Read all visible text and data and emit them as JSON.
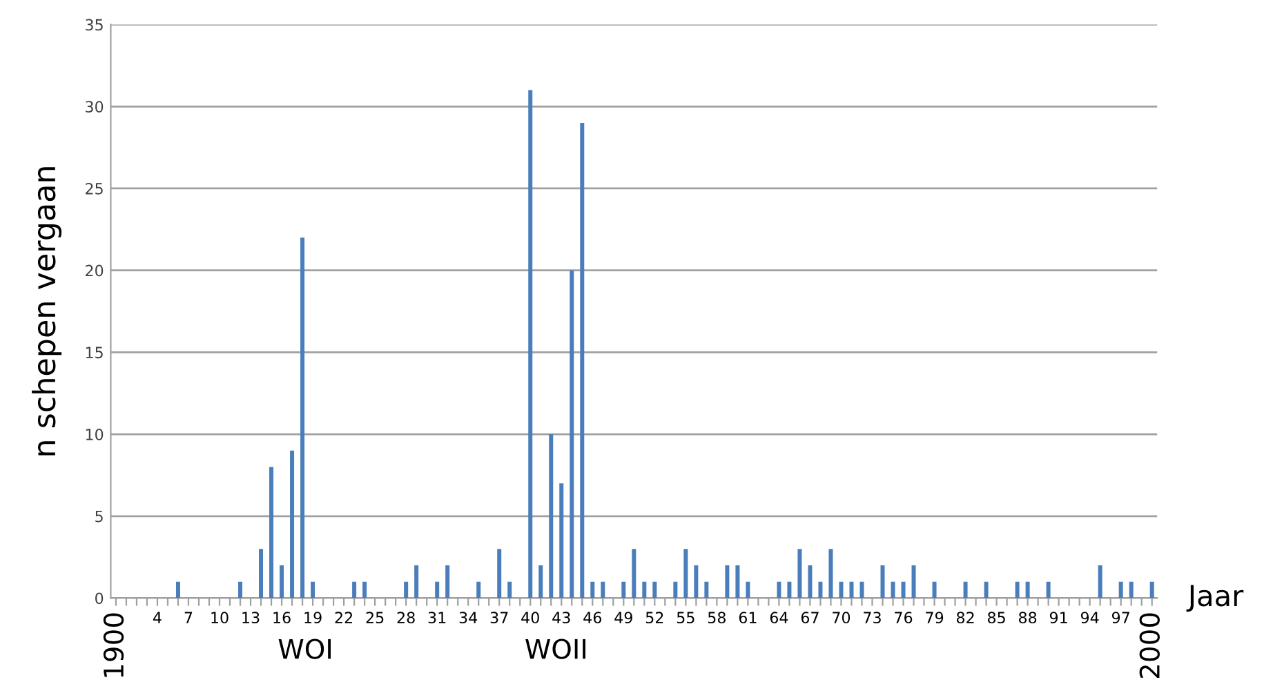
{
  "chart_data": {
    "type": "bar",
    "xlabel": "Jaar",
    "ylabel": "n schepen vergaan",
    "color": "#4a7ebb",
    "categories": [
      "1900",
      null,
      null,
      null,
      "4",
      null,
      null,
      "7",
      null,
      null,
      "10",
      null,
      null,
      "13",
      null,
      null,
      "16",
      null,
      null,
      "19",
      null,
      null,
      "22",
      null,
      null,
      "25",
      null,
      null,
      "28",
      null,
      null,
      "31",
      null,
      null,
      "34",
      null,
      null,
      "37",
      null,
      null,
      "40",
      null,
      null,
      "43",
      null,
      null,
      "46",
      null,
      null,
      "49",
      null,
      null,
      "52",
      null,
      null,
      "55",
      null,
      null,
      "58",
      null,
      null,
      "61",
      null,
      null,
      "64",
      null,
      null,
      "67",
      null,
      null,
      "70",
      null,
      null,
      "73",
      null,
      null,
      "76",
      null,
      null,
      "79",
      null,
      null,
      "82",
      null,
      null,
      "85",
      null,
      null,
      "88",
      null,
      null,
      "91",
      null,
      null,
      "94",
      null,
      null,
      "97",
      null,
      null,
      "2000"
    ],
    "values": [
      0,
      0,
      0,
      0,
      0,
      0,
      1,
      0,
      0,
      0,
      0,
      0,
      1,
      0,
      3,
      8,
      2,
      9,
      22,
      1,
      0,
      0,
      0,
      1,
      1,
      0,
      0,
      0,
      1,
      2,
      0,
      1,
      2,
      0,
      0,
      1,
      0,
      3,
      1,
      0,
      31,
      2,
      10,
      7,
      20,
      29,
      1,
      1,
      0,
      1,
      3,
      1,
      1,
      0,
      1,
      3,
      2,
      1,
      0,
      2,
      2,
      1,
      0,
      0,
      1,
      1,
      3,
      2,
      1,
      3,
      1,
      1,
      1,
      0,
      2,
      1,
      1,
      2,
      0,
      1,
      0,
      0,
      1,
      0,
      1,
      0,
      0,
      1,
      1,
      0,
      1,
      0,
      0,
      0,
      0,
      2,
      0,
      1,
      1,
      0,
      1
    ],
    "ylim": [
      0,
      35
    ],
    "yticks": [
      0,
      5,
      10,
      15,
      20,
      25,
      30,
      35
    ],
    "grid": "y",
    "annotations": [
      "WOI",
      "WOII"
    ]
  }
}
